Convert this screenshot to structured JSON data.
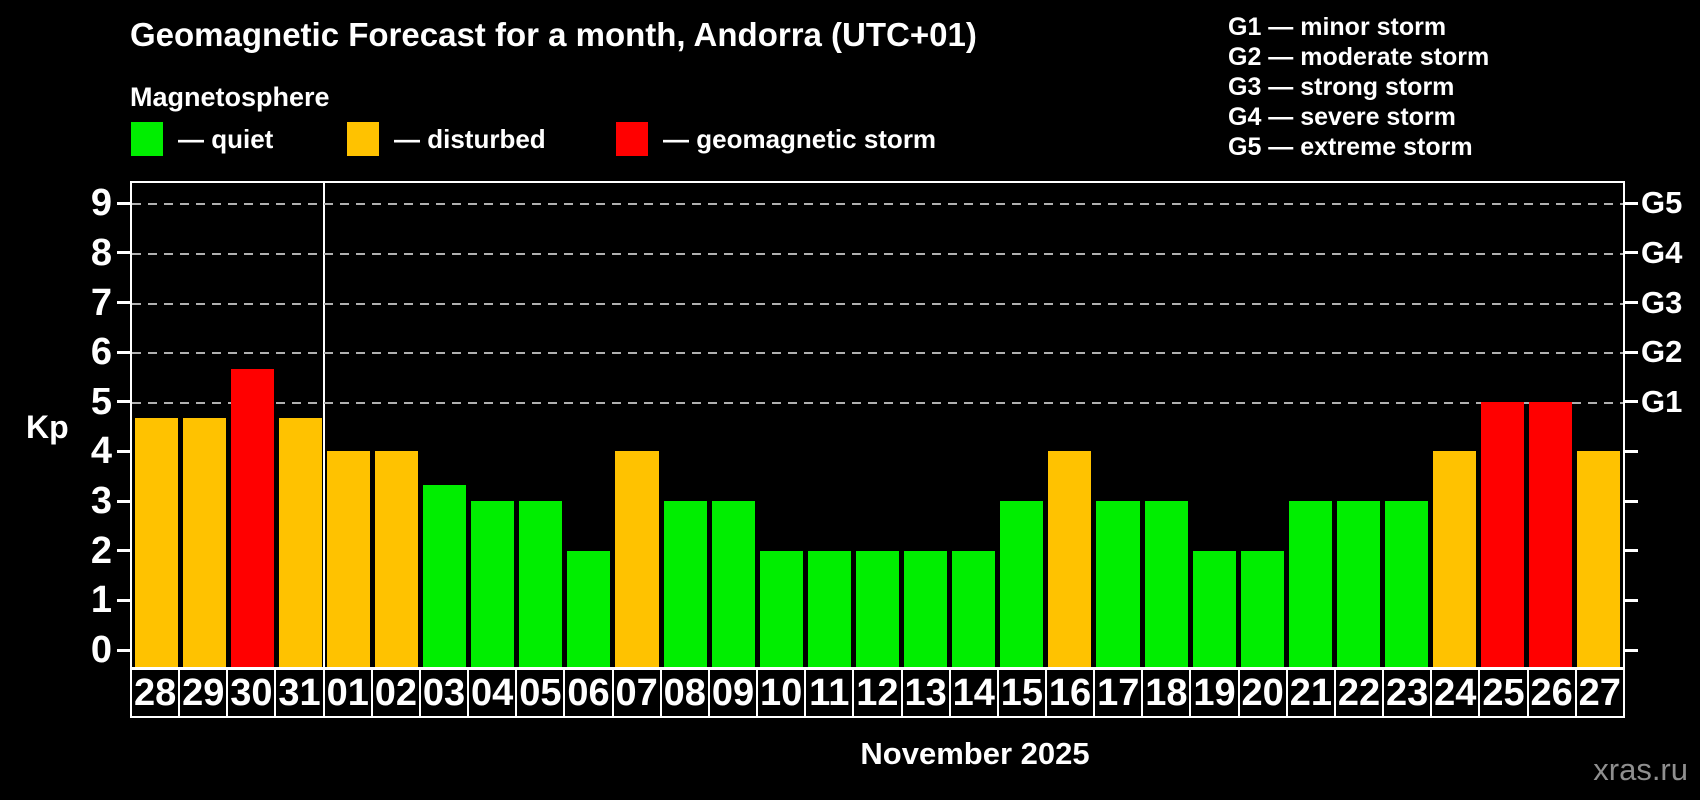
{
  "header": {
    "title": "Geomagnetic Forecast for a month, Andorra (UTC+01)",
    "subtitle": "Magnetosphere"
  },
  "legend": {
    "items": [
      {
        "key": "quiet",
        "label": "— quiet",
        "color": "#00ee00",
        "x": 131
      },
      {
        "key": "disturbed",
        "label": "— disturbed",
        "color": "#ffc200",
        "x": 347
      },
      {
        "key": "storm",
        "label": "— geomagnetic storm",
        "color": "#ff0000",
        "x": 616
      }
    ]
  },
  "g_scale_legend": {
    "lines": [
      "G1 — minor storm",
      "G2 — moderate storm",
      "G3 — strong storm",
      "G4 — severe storm",
      "G5 — extreme storm"
    ]
  },
  "chart_data": {
    "type": "bar",
    "title": "Geomagnetic Forecast for a month, Andorra (UTC+01)",
    "ylabel": "Kp",
    "xlabel": "November 2025",
    "ylim": [
      0,
      9
    ],
    "grid": "dashed horizontal at Kp 5-9 only",
    "legend_position": "top-left",
    "yticks": [
      0,
      1,
      2,
      3,
      4,
      5,
      6,
      7,
      8,
      9
    ],
    "gridline_kps": [
      5,
      6,
      7,
      8,
      9
    ],
    "right_axis": [
      {
        "kp": 5,
        "label": "G1"
      },
      {
        "kp": 6,
        "label": "G2"
      },
      {
        "kp": 7,
        "label": "G3"
      },
      {
        "kp": 8,
        "label": "G4"
      },
      {
        "kp": 9,
        "label": "G5"
      }
    ],
    "colors": {
      "quiet": "#00ee00",
      "disturbed": "#ffc200",
      "storm": "#ff0000"
    },
    "month_separator_after_index": 3,
    "categories": [
      "28",
      "29",
      "30",
      "31",
      "01",
      "02",
      "03",
      "04",
      "05",
      "06",
      "07",
      "08",
      "09",
      "10",
      "11",
      "12",
      "13",
      "14",
      "15",
      "16",
      "17",
      "18",
      "19",
      "20",
      "21",
      "22",
      "23",
      "24",
      "25",
      "26",
      "27"
    ],
    "values": [
      4.67,
      4.67,
      5.67,
      4.67,
      4,
      4,
      3.33,
      3,
      3,
      2,
      4,
      3,
      3,
      2,
      2,
      2,
      2,
      2,
      3,
      4,
      3,
      3,
      2,
      2,
      3,
      3,
      3,
      4,
      5,
      5,
      4
    ],
    "levels": [
      "disturbed",
      "disturbed",
      "storm",
      "disturbed",
      "disturbed",
      "disturbed",
      "quiet",
      "quiet",
      "quiet",
      "quiet",
      "disturbed",
      "quiet",
      "quiet",
      "quiet",
      "quiet",
      "quiet",
      "quiet",
      "quiet",
      "quiet",
      "disturbed",
      "quiet",
      "quiet",
      "quiet",
      "quiet",
      "quiet",
      "quiet",
      "quiet",
      "disturbed",
      "storm",
      "storm",
      "disturbed"
    ]
  },
  "footer": {
    "month_label": "November 2025",
    "watermark": "xras.ru"
  }
}
